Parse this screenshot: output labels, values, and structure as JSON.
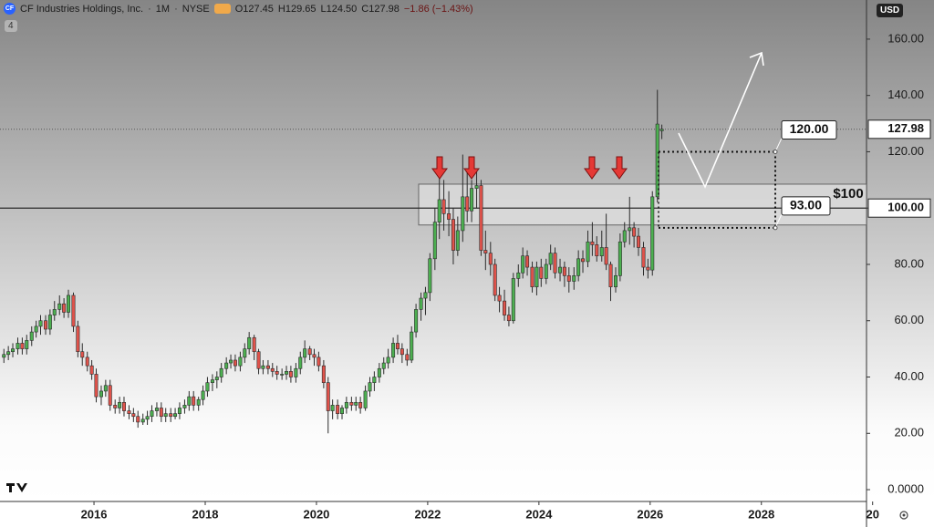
{
  "header": {
    "logo": "CF",
    "symbol": "CF Industries Holdings, Inc.",
    "interval": "1M",
    "exchange": "NYSE",
    "ohlc": [
      "O127.45",
      "H129.65",
      "L124.50",
      "C127.98"
    ],
    "change": "−1.86 (−1.43%)",
    "indicators": "4",
    "currency": "USD"
  },
  "chart_data": {
    "type": "candlestick",
    "up_color": "#4caf50",
    "down_color": "#e0534b",
    "x": [
      2014.38,
      2014.46,
      2014.54,
      2014.63,
      2014.71,
      2014.79,
      2014.88,
      2014.96,
      2015.04,
      2015.13,
      2015.21,
      2015.29,
      2015.38,
      2015.46,
      2015.54,
      2015.63,
      2015.71,
      2015.79,
      2015.88,
      2015.96,
      2016.04,
      2016.13,
      2016.21,
      2016.29,
      2016.38,
      2016.46,
      2016.54,
      2016.63,
      2016.71,
      2016.79,
      2016.88,
      2016.96,
      2017.04,
      2017.13,
      2017.21,
      2017.29,
      2017.38,
      2017.46,
      2017.54,
      2017.63,
      2017.71,
      2017.79,
      2017.88,
      2017.96,
      2018.04,
      2018.13,
      2018.21,
      2018.29,
      2018.38,
      2018.46,
      2018.54,
      2018.63,
      2018.71,
      2018.79,
      2018.88,
      2018.96,
      2019.04,
      2019.13,
      2019.21,
      2019.29,
      2019.38,
      2019.46,
      2019.54,
      2019.63,
      2019.71,
      2019.79,
      2019.88,
      2019.96,
      2020.04,
      2020.13,
      2020.21,
      2020.29,
      2020.38,
      2020.46,
      2020.54,
      2020.63,
      2020.71,
      2020.79,
      2020.88,
      2020.96,
      2021.04,
      2021.13,
      2021.21,
      2021.29,
      2021.38,
      2021.46,
      2021.54,
      2021.63,
      2021.71,
      2021.79,
      2021.88,
      2021.96,
      2022.04,
      2022.13,
      2022.21,
      2022.29,
      2022.38,
      2022.46,
      2022.54,
      2022.63,
      2022.71,
      2022.79,
      2022.88,
      2022.96,
      2023.04,
      2023.13,
      2023.21,
      2023.29,
      2023.38,
      2023.46,
      2023.54,
      2023.63,
      2023.71,
      2023.79,
      2023.88,
      2023.96,
      2024.04,
      2024.13,
      2024.21,
      2024.29,
      2024.38,
      2024.46,
      2024.54,
      2024.63,
      2024.71,
      2024.79,
      2024.88,
      2024.96,
      2025.04,
      2025.13,
      2025.21,
      2025.29,
      2025.38,
      2025.46,
      2025.54,
      2025.63,
      2025.71,
      2025.79,
      2025.88,
      2025.96,
      2026.04,
      2026.13,
      2026.21
    ],
    "open": [
      47,
      48,
      49,
      50,
      52,
      50,
      53,
      56,
      58,
      60,
      57,
      62,
      64,
      66,
      63,
      69,
      58,
      49,
      47,
      44,
      41,
      33,
      35,
      37,
      30,
      29,
      31,
      28,
      27,
      26,
      24,
      25,
      26,
      28,
      29,
      26,
      27,
      26,
      27,
      29,
      30,
      33,
      30,
      32,
      35,
      38,
      39,
      40,
      43,
      45,
      46,
      44,
      47,
      50,
      54,
      49,
      43,
      44,
      43,
      42,
      41,
      41,
      42,
      40,
      43,
      47,
      50,
      48,
      47,
      44,
      38,
      28,
      30,
      27,
      29,
      31,
      30,
      31,
      29,
      35,
      38,
      40,
      43,
      45,
      47,
      52,
      50,
      48,
      46,
      56,
      64,
      68,
      70,
      82,
      95,
      103,
      98,
      96,
      85,
      92,
      104,
      99,
      107,
      108,
      85,
      84,
      80,
      69,
      67,
      62,
      60,
      75,
      77,
      83,
      79,
      72,
      79,
      75,
      80,
      84,
      77,
      79,
      76,
      74,
      76,
      82,
      81,
      88,
      87,
      83,
      86,
      80,
      72,
      76,
      88,
      92,
      93,
      90,
      86,
      79,
      78,
      104,
      127.45
    ],
    "high": [
      50,
      51,
      52,
      54,
      54,
      55,
      58,
      60,
      62,
      62,
      64,
      67,
      69,
      68,
      71,
      70,
      60,
      52,
      49,
      46,
      43,
      37,
      39,
      39,
      32,
      33,
      33,
      30,
      29,
      28,
      27,
      28,
      30,
      31,
      31,
      29,
      29,
      29,
      31,
      32,
      35,
      35,
      33,
      37,
      40,
      41,
      42,
      45,
      47,
      48,
      48,
      49,
      52,
      56,
      55,
      50,
      46,
      46,
      45,
      44,
      43,
      44,
      44,
      45,
      49,
      53,
      51,
      50,
      49,
      46,
      40,
      32,
      32,
      30,
      33,
      33,
      33,
      33,
      37,
      40,
      42,
      45,
      47,
      50,
      54,
      55,
      52,
      50,
      58,
      66,
      70,
      72,
      84,
      100,
      113,
      110,
      106,
      100,
      97,
      119,
      113,
      110,
      113,
      110,
      92,
      88,
      82,
      72,
      71,
      65,
      77,
      80,
      86,
      85,
      81,
      81,
      82,
      82,
      87,
      86,
      82,
      81,
      79,
      79,
      85,
      85,
      92,
      95,
      90,
      92,
      98,
      81,
      79,
      91,
      95,
      104,
      95,
      93,
      88,
      82,
      106,
      142,
      129.65
    ],
    "low": [
      45,
      46,
      47,
      48,
      48,
      48,
      51,
      54,
      55,
      55,
      55,
      60,
      62,
      61,
      61,
      56,
      47,
      44,
      42,
      39,
      31,
      30,
      33,
      28,
      27,
      27,
      26,
      25,
      24,
      22,
      23,
      23,
      24,
      26,
      24,
      24,
      24,
      25,
      25,
      27,
      28,
      28,
      28,
      30,
      33,
      35,
      36,
      38,
      41,
      43,
      42,
      42,
      45,
      48,
      46,
      41,
      41,
      41,
      40,
      39,
      39,
      39,
      38,
      38,
      41,
      45,
      46,
      44,
      42,
      36,
      20,
      25,
      25,
      25,
      27,
      28,
      28,
      27,
      28,
      33,
      35,
      38,
      41,
      43,
      45,
      48,
      45,
      44,
      45,
      54,
      60,
      62,
      67,
      78,
      89,
      92,
      90,
      80,
      83,
      88,
      95,
      95,
      100,
      83,
      78,
      76,
      67,
      63,
      60,
      58,
      59,
      72,
      75,
      76,
      70,
      69,
      72,
      73,
      78,
      75,
      74,
      72,
      70,
      71,
      74,
      77,
      79,
      83,
      81,
      81,
      78,
      67,
      70,
      74,
      86,
      87,
      86,
      83,
      76,
      75,
      76,
      102,
      124.5
    ],
    "close": [
      48,
      49,
      50,
      52,
      50,
      53,
      56,
      58,
      60,
      57,
      62,
      64,
      66,
      63,
      69,
      58,
      49,
      47,
      44,
      41,
      33,
      35,
      37,
      30,
      29,
      31,
      28,
      27,
      26,
      24,
      25,
      26,
      28,
      29,
      26,
      27,
      26,
      27,
      29,
      30,
      33,
      30,
      32,
      35,
      38,
      39,
      40,
      43,
      45,
      46,
      44,
      47,
      50,
      54,
      49,
      43,
      44,
      43,
      42,
      41,
      41,
      42,
      40,
      43,
      47,
      50,
      48,
      47,
      44,
      38,
      28,
      30,
      27,
      29,
      31,
      30,
      31,
      29,
      35,
      38,
      40,
      43,
      45,
      47,
      52,
      50,
      48,
      46,
      56,
      64,
      68,
      70,
      82,
      95,
      103,
      98,
      96,
      85,
      92,
      104,
      99,
      107,
      108,
      85,
      84,
      80,
      69,
      67,
      62,
      60,
      75,
      77,
      83,
      79,
      72,
      79,
      75,
      80,
      84,
      77,
      79,
      76,
      74,
      76,
      82,
      81,
      88,
      87,
      83,
      86,
      80,
      72,
      76,
      88,
      92,
      93,
      90,
      86,
      79,
      78,
      104,
      129.84,
      127.98
    ],
    "xlim": [
      2014.31,
      2029.89
    ],
    "ylim": [
      -4.2,
      173.9
    ],
    "xticks": [
      2016,
      2018,
      2020,
      2022,
      2024,
      2026,
      2028,
      {
        "value": 2030,
        "label": "20"
      }
    ],
    "yticks": [
      {
        "value": 0,
        "label": "0.0000"
      },
      {
        "value": 20,
        "label": "20.00"
      },
      {
        "value": 40,
        "label": "40.00"
      },
      {
        "value": 60,
        "label": "60.00"
      },
      {
        "value": 80,
        "label": "80.00"
      },
      {
        "value": 100,
        "label": "100.00"
      },
      {
        "value": 120,
        "label": "120.00"
      },
      {
        "value": 140,
        "label": "140.00"
      },
      {
        "value": 160,
        "label": "160.00"
      }
    ],
    "last_price": {
      "value": 127.98,
      "label": "127.98"
    },
    "level": {
      "value": 100,
      "label": "100.00"
    },
    "zone": {
      "low": 94,
      "high": 108.5,
      "label": "$100"
    },
    "targets": [
      {
        "value": 120,
        "label": "120.00"
      },
      {
        "value": 93,
        "label": "93.00"
      }
    ]
  }
}
